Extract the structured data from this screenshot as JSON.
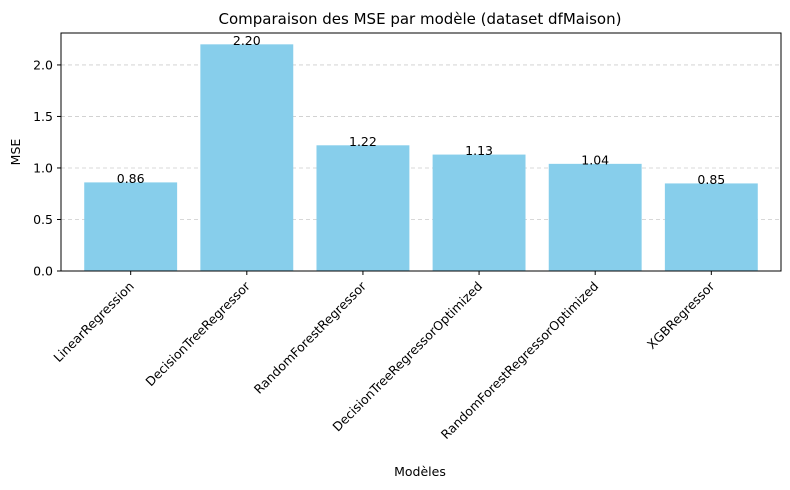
{
  "chart_data": {
    "type": "bar",
    "title": "Comparaison des MSE par modèle (dataset dfMaison)",
    "xlabel": "Modèles",
    "ylabel": "MSE",
    "categories": [
      "LinearRegression",
      "DecisionTreeRegressor",
      "RandomForestRegressor",
      "DecisionTreeRegressorOptimized",
      "RandomForestRegressorOptimized",
      "XGBRegressor"
    ],
    "values": [
      0.86,
      2.2,
      1.22,
      1.13,
      1.04,
      0.85
    ],
    "value_labels": [
      "0.86",
      "2.20",
      "1.22",
      "1.13",
      "1.04",
      "0.85"
    ],
    "ylim": [
      0,
      2.31
    ],
    "yticks": [
      0.0,
      0.5,
      1.0,
      1.5,
      2.0
    ],
    "ytick_labels": [
      "0.0",
      "0.5",
      "1.0",
      "1.5",
      "2.0"
    ],
    "grid": "y dashed",
    "bar_color": "#87ceeb",
    "grid_color": "#cccccc"
  }
}
